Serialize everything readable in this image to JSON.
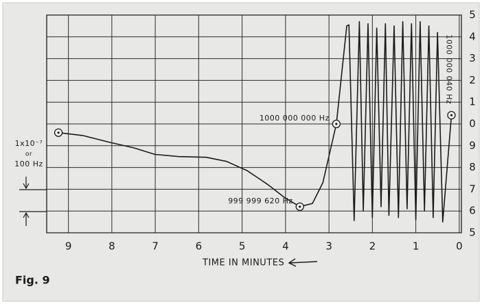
{
  "chart_data": {
    "type": "line",
    "caption": "Fig. 9",
    "xlabel": "TIME IN MINUTES",
    "left_note": [
      "1x10⁻⁷",
      "or",
      "100 Hz"
    ],
    "xlim": [
      9.5,
      -0.05
    ],
    "xticks": [
      9,
      8,
      7,
      6,
      5,
      4,
      3,
      2,
      1,
      0
    ],
    "ylim": [
      -500,
      500
    ],
    "yticks": [
      {
        "value": 500,
        "label": "5"
      },
      {
        "value": 400,
        "label": "4"
      },
      {
        "value": 300,
        "label": "3"
      },
      {
        "value": 200,
        "label": "2"
      },
      {
        "value": 100,
        "label": "1"
      },
      0,
      {
        "value": -100,
        "label": "9"
      },
      {
        "value": -200,
        "label": "8"
      },
      {
        "value": -300,
        "label": "7"
      },
      {
        "value": -400,
        "label": "6"
      },
      {
        "value": -500,
        "label": "5"
      }
    ],
    "grid": true,
    "color": "#1a1a1a",
    "x": [
      9.23,
      8.67,
      8.04,
      7.49,
      7.01,
      6.46,
      5.83,
      5.36,
      4.88,
      4.41,
      4.01,
      3.67,
      3.38,
      3.14,
      2.83,
      2.59,
      2.54,
      2.42,
      2.3,
      2.21,
      2.1,
      2.0,
      1.9,
      1.8,
      1.7,
      1.62,
      1.5,
      1.4,
      1.3,
      1.2,
      1.1,
      1.0,
      0.9,
      0.8,
      0.7,
      0.6,
      0.5,
      0.38,
      0.18
    ],
    "values": [
      -40,
      -53,
      -85,
      -110,
      -140,
      -150,
      -153,
      -172,
      -215,
      -278,
      -340,
      -380,
      -365,
      -270,
      0,
      450,
      455,
      -444,
      470,
      -400,
      460,
      -430,
      440,
      -380,
      460,
      -420,
      450,
      -430,
      470,
      -390,
      460,
      -440,
      470,
      -400,
      450,
      -430,
      420,
      -450,
      40
    ],
    "markers": [
      {
        "x": 9.23,
        "y": -40
      },
      {
        "x": 3.67,
        "y": -380,
        "label": "999 999 620 Hz"
      },
      {
        "x": 2.83,
        "y": 0,
        "label": "1000 000 000 Hz"
      },
      {
        "x": 0.18,
        "y": 40,
        "label": "1000 000 040 Hz",
        "orientation": "vertical"
      }
    ]
  }
}
